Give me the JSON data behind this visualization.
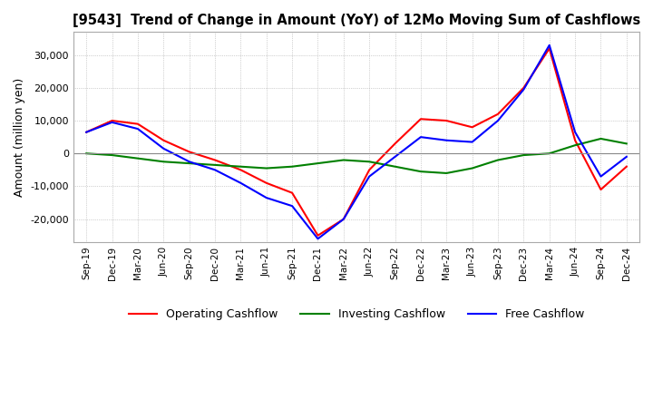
{
  "title": "[9543]  Trend of Change in Amount (YoY) of 12Mo Moving Sum of Cashflows",
  "ylabel": "Amount (million yen)",
  "x_labels": [
    "Sep-19",
    "Dec-19",
    "Mar-20",
    "Jun-20",
    "Sep-20",
    "Dec-20",
    "Mar-21",
    "Jun-21",
    "Sep-21",
    "Dec-21",
    "Mar-22",
    "Jun-22",
    "Sep-22",
    "Dec-22",
    "Mar-23",
    "Jun-23",
    "Sep-23",
    "Dec-23",
    "Mar-24",
    "Jun-24",
    "Sep-24",
    "Dec-24"
  ],
  "operating": [
    6500,
    10000,
    9000,
    4000,
    500,
    -2000,
    -5000,
    -9000,
    -12000,
    -25000,
    -20000,
    -5000,
    3000,
    10500,
    10000,
    8000,
    12000,
    20000,
    32000,
    4000,
    -11000,
    -4000
  ],
  "investing": [
    0,
    -500,
    -1500,
    -2500,
    -3000,
    -3500,
    -4000,
    -4500,
    -4000,
    -3000,
    -2000,
    -2500,
    -4000,
    -5500,
    -6000,
    -4500,
    -2000,
    -500,
    0,
    2500,
    4500,
    3000
  ],
  "free": [
    6500,
    9500,
    7500,
    1500,
    -2500,
    -5000,
    -9000,
    -13500,
    -16000,
    -26000,
    -20000,
    -7000,
    -1000,
    5000,
    4000,
    3500,
    10000,
    19500,
    33000,
    6500,
    -7000,
    -1000
  ],
  "ylim": [
    -27000,
    37000
  ],
  "yticks": [
    -20000,
    -10000,
    0,
    10000,
    20000,
    30000
  ],
  "operating_color": "#ff0000",
  "investing_color": "#008000",
  "free_color": "#0000ff",
  "background_color": "#ffffff",
  "plot_bg_color": "#ffffff",
  "grid_color": "#aaaaaa"
}
